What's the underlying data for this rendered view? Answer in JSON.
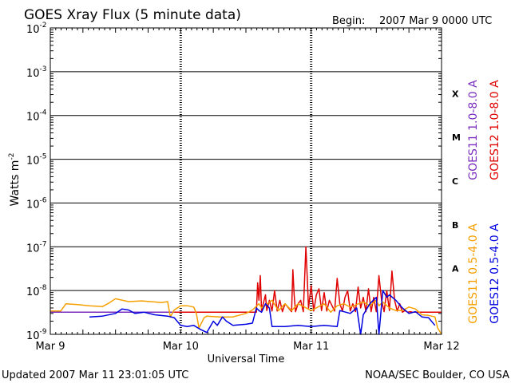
{
  "chart_data": {
    "type": "line",
    "title": "GOES Xray Flux (5 minute data)",
    "begin_label": "Begin:",
    "begin_value": "2007 Mar 9 0000 UTC",
    "xlabel": "Universal Time",
    "ylabel": "Watts m",
    "ylabel_sup": "-2",
    "y_scale": "log",
    "ylim": [
      1e-09,
      0.01
    ],
    "xlim_days": [
      0,
      3
    ],
    "grid": true,
    "x_ticks": [
      {
        "day": 0,
        "label": "Mar 9"
      },
      {
        "day": 1,
        "label": "Mar 10"
      },
      {
        "day": 2,
        "label": "Mar 11"
      },
      {
        "day": 3,
        "label": "Mar 12"
      }
    ],
    "y_ticks": [
      {
        "exp": -2,
        "base": "10",
        "sup": "-2"
      },
      {
        "exp": -3,
        "base": "10",
        "sup": "-3"
      },
      {
        "exp": -4,
        "base": "10",
        "sup": "-4"
      },
      {
        "exp": -5,
        "base": "10",
        "sup": "-5"
      },
      {
        "exp": -6,
        "base": "10",
        "sup": "-6"
      },
      {
        "exp": -7,
        "base": "10",
        "sup": "-7"
      },
      {
        "exp": -8,
        "base": "10",
        "sup": "-8"
      },
      {
        "exp": -9,
        "base": "10",
        "sup": "-9"
      }
    ],
    "flare_classes": [
      {
        "label": "X",
        "exp": -3.5
      },
      {
        "label": "M",
        "exp": -4.5
      },
      {
        "label": "C",
        "exp": -5.5
      },
      {
        "label": "B",
        "exp": -6.5
      },
      {
        "label": "A",
        "exp": -7.5
      }
    ],
    "legend_top": [
      {
        "label": "GOES11 1.0-8.0 A",
        "color": "#7b2fbe"
      },
      {
        "label": "GOES12 1.0-8.0 A",
        "color": "#e00000"
      }
    ],
    "legend_bottom": [
      {
        "label": "GOES11 0.5-4.0 A",
        "color": "#f5a000"
      },
      {
        "label": "GOES12 0.5-4.0 A",
        "color": "#0000e0"
      }
    ],
    "series": [
      {
        "name": "GOES11 1.0-8.0 A",
        "color": "#7b2fbe",
        "x": [
          0,
          0.95
        ],
        "y": [
          3.2e-09,
          3.2e-09
        ]
      },
      {
        "name": "GOES12 1.0-8.0 A",
        "color": "#e00000",
        "x": [
          0.95,
          1.58,
          1.59,
          1.6,
          1.61,
          1.62,
          1.65,
          1.66,
          1.68,
          1.7,
          1.72,
          1.74,
          1.76,
          1.78,
          1.8,
          1.85,
          1.86,
          1.87,
          1.88,
          1.9,
          1.92,
          1.94,
          1.96,
          1.97,
          1.98,
          2.0,
          2.02,
          2.04,
          2.06,
          2.08,
          2.1,
          2.12,
          2.14,
          2.18,
          2.2,
          2.22,
          2.24,
          2.26,
          2.28,
          2.3,
          2.32,
          2.34,
          2.36,
          2.38,
          2.4,
          2.42,
          2.44,
          2.46,
          2.48,
          2.5,
          2.52,
          2.54,
          2.56,
          2.58,
          2.6,
          2.62,
          2.64,
          2.66,
          2.68,
          2.7,
          2.72,
          2.74,
          2.76,
          2.78,
          2.8,
          2.82,
          2.84,
          2.86,
          2.88,
          2.9,
          2.92,
          2.94,
          2.96,
          2.98,
          3.0
        ],
        "y": [
          3.2e-09,
          3.2e-09,
          1.5e-08,
          6e-09,
          2.2e-08,
          3.5e-09,
          8e-09,
          3.5e-09,
          6e-09,
          3.4e-09,
          1e-08,
          3.4e-09,
          6e-09,
          3.3e-09,
          5e-09,
          3.3e-09,
          3e-08,
          8e-09,
          3.3e-09,
          5e-09,
          6e-09,
          3.3e-09,
          1e-07,
          2e-08,
          4e-09,
          1.3e-08,
          3.4e-09,
          8e-09,
          1.1e-08,
          3.5e-09,
          9e-09,
          3.4e-09,
          6e-09,
          3.4e-09,
          1.9e-08,
          5e-09,
          3.4e-09,
          7e-09,
          1e-08,
          3.4e-09,
          5e-09,
          3.3e-09,
          1.2e-08,
          4e-09,
          7e-09,
          3.3e-09,
          1.1e-08,
          3.3e-09,
          7e-09,
          3.3e-09,
          2.2e-08,
          6e-09,
          3.3e-09,
          1e-08,
          3.5e-09,
          2.8e-08,
          6e-09,
          3.4e-09,
          5e-09,
          3.2e-09,
          3.5e-09,
          3.2e-09,
          3.3e-09,
          3.2e-09,
          3.2e-09,
          3.2e-09,
          3.2e-09,
          3.2e-09,
          3.2e-09,
          3.2e-09,
          3.2e-09,
          3.2e-09,
          3.2e-09,
          3.2e-09,
          3.2e-09
        ]
      },
      {
        "name": "GOES11 0.5-4.0 A",
        "color": "#f5a000",
        "x": [
          0,
          0.08,
          0.12,
          0.2,
          0.3,
          0.4,
          0.44,
          0.5,
          0.6,
          0.7,
          0.8,
          0.85,
          0.9,
          0.92,
          0.95,
          1.0,
          1.05,
          1.1,
          1.12,
          1.14,
          1.18,
          1.2,
          1.3,
          1.4,
          1.5,
          1.55,
          1.6,
          1.62,
          1.7,
          1.75,
          1.8,
          1.85,
          1.9,
          2.0,
          2.1,
          2.15,
          2.2,
          2.25,
          2.3,
          2.35,
          2.4,
          2.45,
          2.5,
          2.52,
          2.55,
          2.6,
          2.65,
          2.7,
          2.75,
          2.8,
          2.85,
          2.9,
          2.95,
          2.97,
          3.0
        ],
        "y": [
          3.4e-09,
          3.4e-09,
          5e-09,
          4.8e-09,
          4.5e-09,
          4.3e-09,
          5e-09,
          6.5e-09,
          5.6e-09,
          5.8e-09,
          5.5e-09,
          5.3e-09,
          5.6e-09,
          2.5e-09,
          3.6e-09,
          4.5e-09,
          4.5e-09,
          4.2e-09,
          3e-09,
          1.4e-09,
          2.4e-09,
          2.6e-09,
          2.5e-09,
          2.5e-09,
          3e-09,
          3.6e-09,
          5e-09,
          4e-09,
          6e-09,
          3.5e-09,
          5e-09,
          3.5e-09,
          5e-09,
          3.5e-09,
          5e-09,
          3.2e-09,
          4.5e-09,
          5e-09,
          4.2e-09,
          4.8e-09,
          5.5e-09,
          4.5e-09,
          6e-09,
          4.5e-09,
          5.5e-09,
          4e-09,
          3.5e-09,
          3.5e-09,
          4.2e-09,
          3.8e-09,
          2.8e-09,
          2.7e-09,
          2.5e-09,
          1.4e-09,
          1e-09
        ]
      },
      {
        "name": "GOES12 0.5-4.0 A",
        "color": "#0000e0",
        "x": [
          0.3,
          0.4,
          0.5,
          0.55,
          0.6,
          0.65,
          0.72,
          0.8,
          0.9,
          0.95,
          1.0,
          1.05,
          1.1,
          1.15,
          1.2,
          1.25,
          1.28,
          1.32,
          1.35,
          1.4,
          1.5,
          1.55,
          1.58,
          1.6,
          1.62,
          1.65,
          1.68,
          1.7,
          1.8,
          1.9,
          2.0,
          2.1,
          2.2,
          2.22,
          2.3,
          2.35,
          2.38,
          2.4,
          2.45,
          2.5,
          2.52,
          2.55,
          2.58,
          2.6,
          2.65,
          2.7,
          2.75,
          2.8,
          2.85,
          2.9,
          2.95
        ],
        "y": [
          2.5e-09,
          2.6e-09,
          3e-09,
          3.8e-09,
          3.6e-09,
          3e-09,
          3.2e-09,
          2.8e-09,
          2.6e-09,
          2.4e-09,
          1.6e-09,
          1.5e-09,
          1.6e-09,
          1.3e-09,
          1.1e-09,
          2e-09,
          1.6e-09,
          2.5e-09,
          2e-09,
          1.6e-09,
          1.7e-09,
          1.8e-09,
          4e-09,
          3.5e-09,
          3.2e-09,
          5e-09,
          4e-09,
          1.5e-09,
          1.5e-09,
          1.6e-09,
          1.5e-09,
          1.6e-09,
          1.5e-09,
          3.5e-09,
          3e-09,
          4e-09,
          1e-09,
          2.8e-09,
          5e-09,
          7e-09,
          1e-09,
          1e-08,
          7e-09,
          8e-09,
          6e-09,
          4e-09,
          3e-09,
          3.3e-09,
          2.5e-09,
          2.4e-09,
          1.6e-09
        ]
      }
    ]
  },
  "footer": {
    "updated": "Updated 2007 Mar 11 23:01:05 UTC",
    "credit": "NOAA/SEC Boulder, CO USA"
  }
}
